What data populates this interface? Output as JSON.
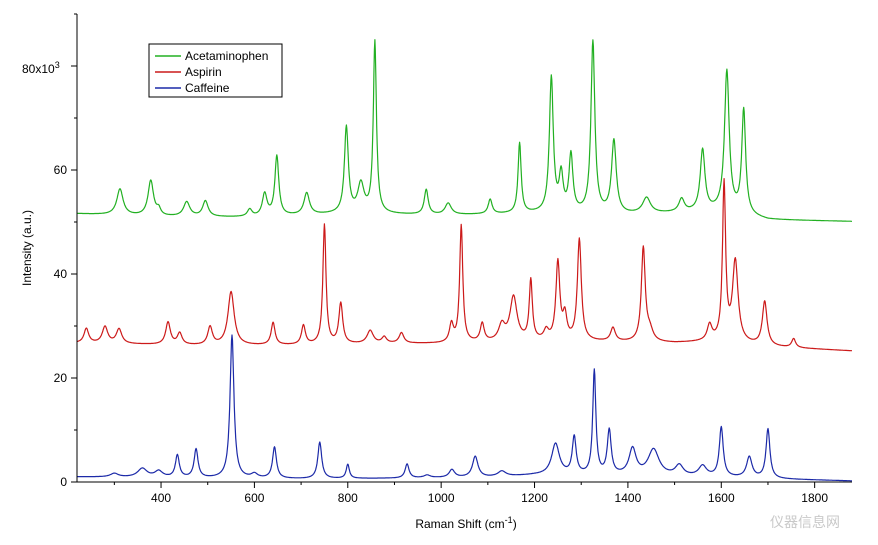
{
  "chart_data": {
    "type": "line",
    "title": "",
    "xlabel": "Raman Shift (cm",
    "xlabel_sup": "-1",
    "xlabel_tail": ")",
    "ylabel": "Intensity (a.u.)",
    "xlim": [
      220,
      1880
    ],
    "ylim": [
      0,
      90000
    ],
    "y_scale_label": "80x10",
    "y_scale_sup": "3",
    "x_ticks": [
      400,
      600,
      800,
      1000,
      1200,
      1400,
      1600,
      1800
    ],
    "y_ticks": [
      0,
      20000,
      40000,
      60000,
      80000
    ],
    "y_tick_labels": [
      "0",
      "20",
      "40",
      "60",
      ""
    ],
    "grid": false,
    "legend_position": "top-left",
    "series": [
      {
        "name": "Acetaminophen",
        "color": "#22b022",
        "baseline": [
          [
            220,
            51600
          ],
          [
            400,
            51000
          ],
          [
            600,
            50900
          ],
          [
            800,
            51600
          ],
          [
            1000,
            51300
          ],
          [
            1200,
            51600
          ],
          [
            1400,
            51400
          ],
          [
            1600,
            52000
          ],
          [
            1700,
            50400
          ],
          [
            1880,
            50100
          ]
        ],
        "peaks": [
          [
            312,
            5000,
            8
          ],
          [
            378,
            6800,
            7
          ],
          [
            395,
            1200,
            5
          ],
          [
            455,
            2800,
            8
          ],
          [
            495,
            3000,
            7
          ],
          [
            590,
            1400,
            6
          ],
          [
            622,
            4300,
            6
          ],
          [
            648,
            11500,
            5
          ],
          [
            712,
            4200,
            7
          ],
          [
            797,
            16500,
            5
          ],
          [
            828,
            5500,
            8
          ],
          [
            858,
            33000,
            4
          ],
          [
            968,
            4800,
            5
          ],
          [
            1015,
            2200,
            8
          ],
          [
            1105,
            2800,
            5
          ],
          [
            1168,
            13500,
            4
          ],
          [
            1236,
            26000,
            5
          ],
          [
            1257,
            7000,
            5
          ],
          [
            1278,
            11000,
            5
          ],
          [
            1325,
            33000,
            5
          ],
          [
            1370,
            14000,
            6
          ],
          [
            1440,
            3000,
            10
          ],
          [
            1515,
            2500,
            7
          ],
          [
            1560,
            11800,
            6
          ],
          [
            1612,
            27000,
            6
          ],
          [
            1648,
            20000,
            5
          ]
        ]
      },
      {
        "name": "Aspirin",
        "color": "#cc1a1a",
        "baseline": [
          [
            220,
            26700
          ],
          [
            500,
            26200
          ],
          [
            700,
            26300
          ],
          [
            900,
            26600
          ],
          [
            1000,
            26600
          ],
          [
            1200,
            27000
          ],
          [
            1300,
            27000
          ],
          [
            1500,
            26700
          ],
          [
            1600,
            27000
          ],
          [
            1700,
            26000
          ],
          [
            1880,
            25200
          ]
        ],
        "peaks": [
          [
            240,
            2800,
            6
          ],
          [
            280,
            3200,
            7
          ],
          [
            310,
            2800,
            7
          ],
          [
            415,
            4300,
            6
          ],
          [
            440,
            2200,
            6
          ],
          [
            505,
            3500,
            6
          ],
          [
            550,
            10300,
            8
          ],
          [
            640,
            4300,
            5
          ],
          [
            705,
            3700,
            5
          ],
          [
            750,
            23000,
            4
          ],
          [
            785,
            7800,
            5
          ],
          [
            848,
            2500,
            8
          ],
          [
            878,
            1200,
            6
          ],
          [
            915,
            2000,
            6
          ],
          [
            1022,
            3500,
            5
          ],
          [
            1043,
            22500,
            4
          ],
          [
            1088,
            3500,
            5
          ],
          [
            1130,
            3000,
            8
          ],
          [
            1155,
            8500,
            9
          ],
          [
            1192,
            11500,
            4
          ],
          [
            1225,
            1800,
            6
          ],
          [
            1250,
            15000,
            5
          ],
          [
            1265,
            4500,
            5
          ],
          [
            1296,
            19500,
            5
          ],
          [
            1368,
            2600,
            6
          ],
          [
            1433,
            18000,
            5
          ],
          [
            1447,
            2000,
            8
          ],
          [
            1575,
            3000,
            6
          ],
          [
            1606,
            30000,
            4
          ],
          [
            1630,
            15500,
            7
          ],
          [
            1693,
            8500,
            6
          ],
          [
            1755,
            1700,
            5
          ]
        ]
      },
      {
        "name": "Caffeine",
        "color": "#1c2aa8",
        "baseline": [
          [
            220,
            1000
          ],
          [
            500,
            700
          ],
          [
            700,
            600
          ],
          [
            900,
            700
          ],
          [
            1100,
            900
          ],
          [
            1200,
            1300
          ],
          [
            1400,
            1200
          ],
          [
            1600,
            900
          ],
          [
            1700,
            600
          ],
          [
            1880,
            200
          ]
        ],
        "peaks": [
          [
            300,
            700,
            10
          ],
          [
            360,
            1700,
            12
          ],
          [
            395,
            1200,
            10
          ],
          [
            435,
            4300,
            5
          ],
          [
            475,
            5500,
            5
          ],
          [
            552,
            27500,
            5
          ],
          [
            600,
            800,
            8
          ],
          [
            643,
            6000,
            5
          ],
          [
            740,
            7000,
            5
          ],
          [
            800,
            2700,
            4
          ],
          [
            927,
            2700,
            5
          ],
          [
            970,
            500,
            8
          ],
          [
            1023,
            1500,
            7
          ],
          [
            1073,
            4000,
            7
          ],
          [
            1130,
            1000,
            10
          ],
          [
            1245,
            6000,
            10
          ],
          [
            1285,
            7200,
            5
          ],
          [
            1328,
            20000,
            4
          ],
          [
            1360,
            8500,
            5
          ],
          [
            1410,
            5000,
            9
          ],
          [
            1455,
            5000,
            14
          ],
          [
            1510,
            2000,
            10
          ],
          [
            1560,
            2000,
            10
          ],
          [
            1600,
            9500,
            5
          ],
          [
            1660,
            4000,
            7
          ],
          [
            1700,
            9500,
            5
          ]
        ]
      }
    ]
  },
  "watermark": "仪器信息网"
}
